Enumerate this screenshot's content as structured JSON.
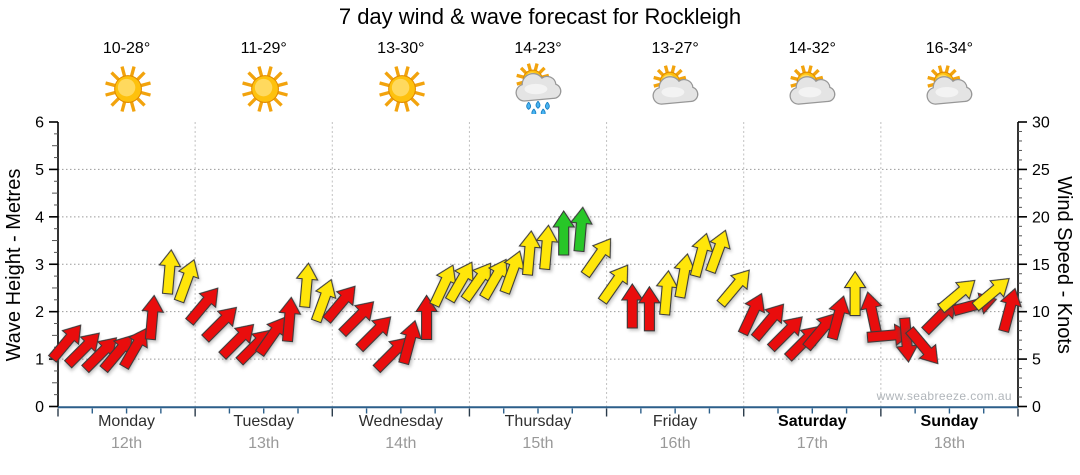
{
  "title": "7 day wind & wave forecast for Rockleigh",
  "watermark": "www.seabreeze.com.au",
  "days": [
    {
      "name": "Monday",
      "date": "12th",
      "temp": "10-28°",
      "icon": "sunny",
      "bold": false
    },
    {
      "name": "Tuesday",
      "date": "13th",
      "temp": "11-29°",
      "icon": "sunny",
      "bold": false
    },
    {
      "name": "Wednesday",
      "date": "14th",
      "temp": "13-30°",
      "icon": "sunny",
      "bold": false
    },
    {
      "name": "Thursday",
      "date": "15th",
      "temp": "14-23°",
      "icon": "sun-cloud-rain",
      "bold": false
    },
    {
      "name": "Friday",
      "date": "16th",
      "temp": "13-27°",
      "icon": "sun-cloud",
      "bold": false
    },
    {
      "name": "Saturday",
      "date": "17th",
      "temp": "14-32°",
      "icon": "sun-cloud",
      "bold": true
    },
    {
      "name": "Sunday",
      "date": "18th",
      "temp": "16-34°",
      "icon": "sun-cloud",
      "bold": true
    }
  ],
  "left_axis": {
    "label": "Wave Height - Metres",
    "min": 0,
    "max": 6,
    "major_ticks": [
      0,
      1,
      2,
      3,
      4,
      5,
      6
    ],
    "minor_step": 0.25
  },
  "right_axis": {
    "label": "Wind Speed - Knots",
    "min": 0,
    "max": 30,
    "major_ticks": [
      0,
      5,
      10,
      15,
      20,
      25,
      30
    ],
    "minor_step": 1
  },
  "chart_data": {
    "type": "wind-arrows",
    "description": "Wind/wave arrows in 3-hour slots (8 per day). Vertical position = wind speed in knots on right axis (equivalent wave height in metres = knots/5 on left axis). dir = arrow rotation in degrees, 0 = pointing straight up, positive = clockwise. Color bands: red < ~11 kn, yellow ~11-18 kn, green > ~18 kn.",
    "slots_per_day": 8,
    "arrows": [
      {
        "day": 0,
        "slot": 0,
        "knots": 6.8,
        "dir": 40,
        "color": "red"
      },
      {
        "day": 0,
        "slot": 1,
        "knots": 6.1,
        "dir": 45,
        "color": "red"
      },
      {
        "day": 0,
        "slot": 2,
        "knots": 5.6,
        "dir": 45,
        "color": "red"
      },
      {
        "day": 0,
        "slot": 3,
        "knots": 5.7,
        "dir": 40,
        "color": "red"
      },
      {
        "day": 0,
        "slot": 4,
        "knots": 6.2,
        "dir": 30,
        "color": "red"
      },
      {
        "day": 0,
        "slot": 5,
        "knots": 9.4,
        "dir": 5,
        "color": "red"
      },
      {
        "day": 0,
        "slot": 6,
        "knots": 14.2,
        "dir": 5,
        "color": "yellow"
      },
      {
        "day": 0,
        "slot": 7,
        "knots": 13.3,
        "dir": 20,
        "color": "yellow"
      },
      {
        "day": 1,
        "slot": 0,
        "knots": 10.7,
        "dir": 40,
        "color": "red"
      },
      {
        "day": 1,
        "slot": 1,
        "knots": 8.8,
        "dir": 45,
        "color": "red"
      },
      {
        "day": 1,
        "slot": 2,
        "knots": 7.0,
        "dir": 45,
        "color": "red"
      },
      {
        "day": 1,
        "slot": 3,
        "knots": 6.4,
        "dir": 45,
        "color": "red"
      },
      {
        "day": 1,
        "slot": 4,
        "knots": 7.5,
        "dir": 35,
        "color": "red"
      },
      {
        "day": 1,
        "slot": 5,
        "knots": 9.2,
        "dir": 5,
        "color": "red"
      },
      {
        "day": 1,
        "slot": 6,
        "knots": 12.8,
        "dir": 5,
        "color": "yellow"
      },
      {
        "day": 1,
        "slot": 7,
        "knots": 11.2,
        "dir": 20,
        "color": "yellow"
      },
      {
        "day": 2,
        "slot": 0,
        "knots": 10.9,
        "dir": 40,
        "color": "red"
      },
      {
        "day": 2,
        "slot": 1,
        "knots": 9.4,
        "dir": 45,
        "color": "red"
      },
      {
        "day": 2,
        "slot": 2,
        "knots": 7.8,
        "dir": 45,
        "color": "red"
      },
      {
        "day": 2,
        "slot": 3,
        "knots": 5.6,
        "dir": 45,
        "color": "red"
      },
      {
        "day": 2,
        "slot": 4,
        "knots": 6.8,
        "dir": 15,
        "color": "red"
      },
      {
        "day": 2,
        "slot": 5,
        "knots": 9.4,
        "dir": 0,
        "color": "red"
      },
      {
        "day": 2,
        "slot": 6,
        "knots": 12.8,
        "dir": 25,
        "color": "yellow"
      },
      {
        "day": 2,
        "slot": 7,
        "knots": 13.2,
        "dir": 30,
        "color": "yellow"
      },
      {
        "day": 3,
        "slot": 0,
        "knots": 13.2,
        "dir": 35,
        "color": "yellow"
      },
      {
        "day": 3,
        "slot": 1,
        "knots": 13.5,
        "dir": 30,
        "color": "yellow"
      },
      {
        "day": 3,
        "slot": 2,
        "knots": 14.2,
        "dir": 20,
        "color": "yellow"
      },
      {
        "day": 3,
        "slot": 3,
        "knots": 16.2,
        "dir": 5,
        "color": "yellow"
      },
      {
        "day": 3,
        "slot": 4,
        "knots": 16.8,
        "dir": 5,
        "color": "yellow"
      },
      {
        "day": 3,
        "slot": 5,
        "knots": 18.3,
        "dir": 0,
        "color": "green"
      },
      {
        "day": 3,
        "slot": 6,
        "knots": 18.7,
        "dir": 5,
        "color": "green"
      },
      {
        "day": 3,
        "slot": 7,
        "knots": 15.8,
        "dir": 35,
        "color": "yellow"
      },
      {
        "day": 4,
        "slot": 0,
        "knots": 13.0,
        "dir": 35,
        "color": "yellow"
      },
      {
        "day": 4,
        "slot": 1,
        "knots": 10.6,
        "dir": 0,
        "color": "red"
      },
      {
        "day": 4,
        "slot": 2,
        "knots": 10.3,
        "dir": 0,
        "color": "red"
      },
      {
        "day": 4,
        "slot": 3,
        "knots": 12.0,
        "dir": 5,
        "color": "yellow"
      },
      {
        "day": 4,
        "slot": 4,
        "knots": 13.8,
        "dir": 10,
        "color": "yellow"
      },
      {
        "day": 4,
        "slot": 5,
        "knots": 16.0,
        "dir": 15,
        "color": "yellow"
      },
      {
        "day": 4,
        "slot": 6,
        "knots": 16.4,
        "dir": 20,
        "color": "yellow"
      },
      {
        "day": 4,
        "slot": 7,
        "knots": 12.6,
        "dir": 40,
        "color": "yellow"
      },
      {
        "day": 5,
        "slot": 0,
        "knots": 9.8,
        "dir": 25,
        "color": "red"
      },
      {
        "day": 5,
        "slot": 1,
        "knots": 9.0,
        "dir": 40,
        "color": "red"
      },
      {
        "day": 5,
        "slot": 2,
        "knots": 7.8,
        "dir": 45,
        "color": "red"
      },
      {
        "day": 5,
        "slot": 3,
        "knots": 6.8,
        "dir": 45,
        "color": "red"
      },
      {
        "day": 5,
        "slot": 4,
        "knots": 8.0,
        "dir": 40,
        "color": "red"
      },
      {
        "day": 5,
        "slot": 5,
        "knots": 9.4,
        "dir": 15,
        "color": "red"
      },
      {
        "day": 5,
        "slot": 6,
        "knots": 11.9,
        "dir": 0,
        "color": "yellow"
      },
      {
        "day": 5,
        "slot": 7,
        "knots": 9.8,
        "dir": -12,
        "color": "red"
      },
      {
        "day": 6,
        "slot": 0,
        "knots": 7.5,
        "dir": 85,
        "color": "red"
      },
      {
        "day": 6,
        "slot": 1,
        "knots": 7.0,
        "dir": 175,
        "color": "red"
      },
      {
        "day": 6,
        "slot": 2,
        "knots": 6.3,
        "dir": 140,
        "color": "red"
      },
      {
        "day": 6,
        "slot": 3,
        "knots": 9.6,
        "dir": 45,
        "color": "red"
      },
      {
        "day": 6,
        "slot": 4,
        "knots": 11.8,
        "dir": 50,
        "color": "yellow"
      },
      {
        "day": 6,
        "slot": 5,
        "knots": 10.7,
        "dir": 75,
        "color": "red"
      },
      {
        "day": 6,
        "slot": 6,
        "knots": 12.0,
        "dir": 50,
        "color": "yellow"
      },
      {
        "day": 6,
        "slot": 7,
        "knots": 10.2,
        "dir": 15,
        "color": "red"
      }
    ]
  },
  "colors": {
    "red": "#e90d0d",
    "yellow": "#ffe60a",
    "green": "#28c628",
    "arrow_outline": "#3a3a3a",
    "bottom_axis": "#2c5f8a",
    "grid": "#9a9a9a",
    "day_boundary": "#c0c0c0",
    "date_text": "#999999",
    "watermark_text": "#b0b5ba"
  }
}
